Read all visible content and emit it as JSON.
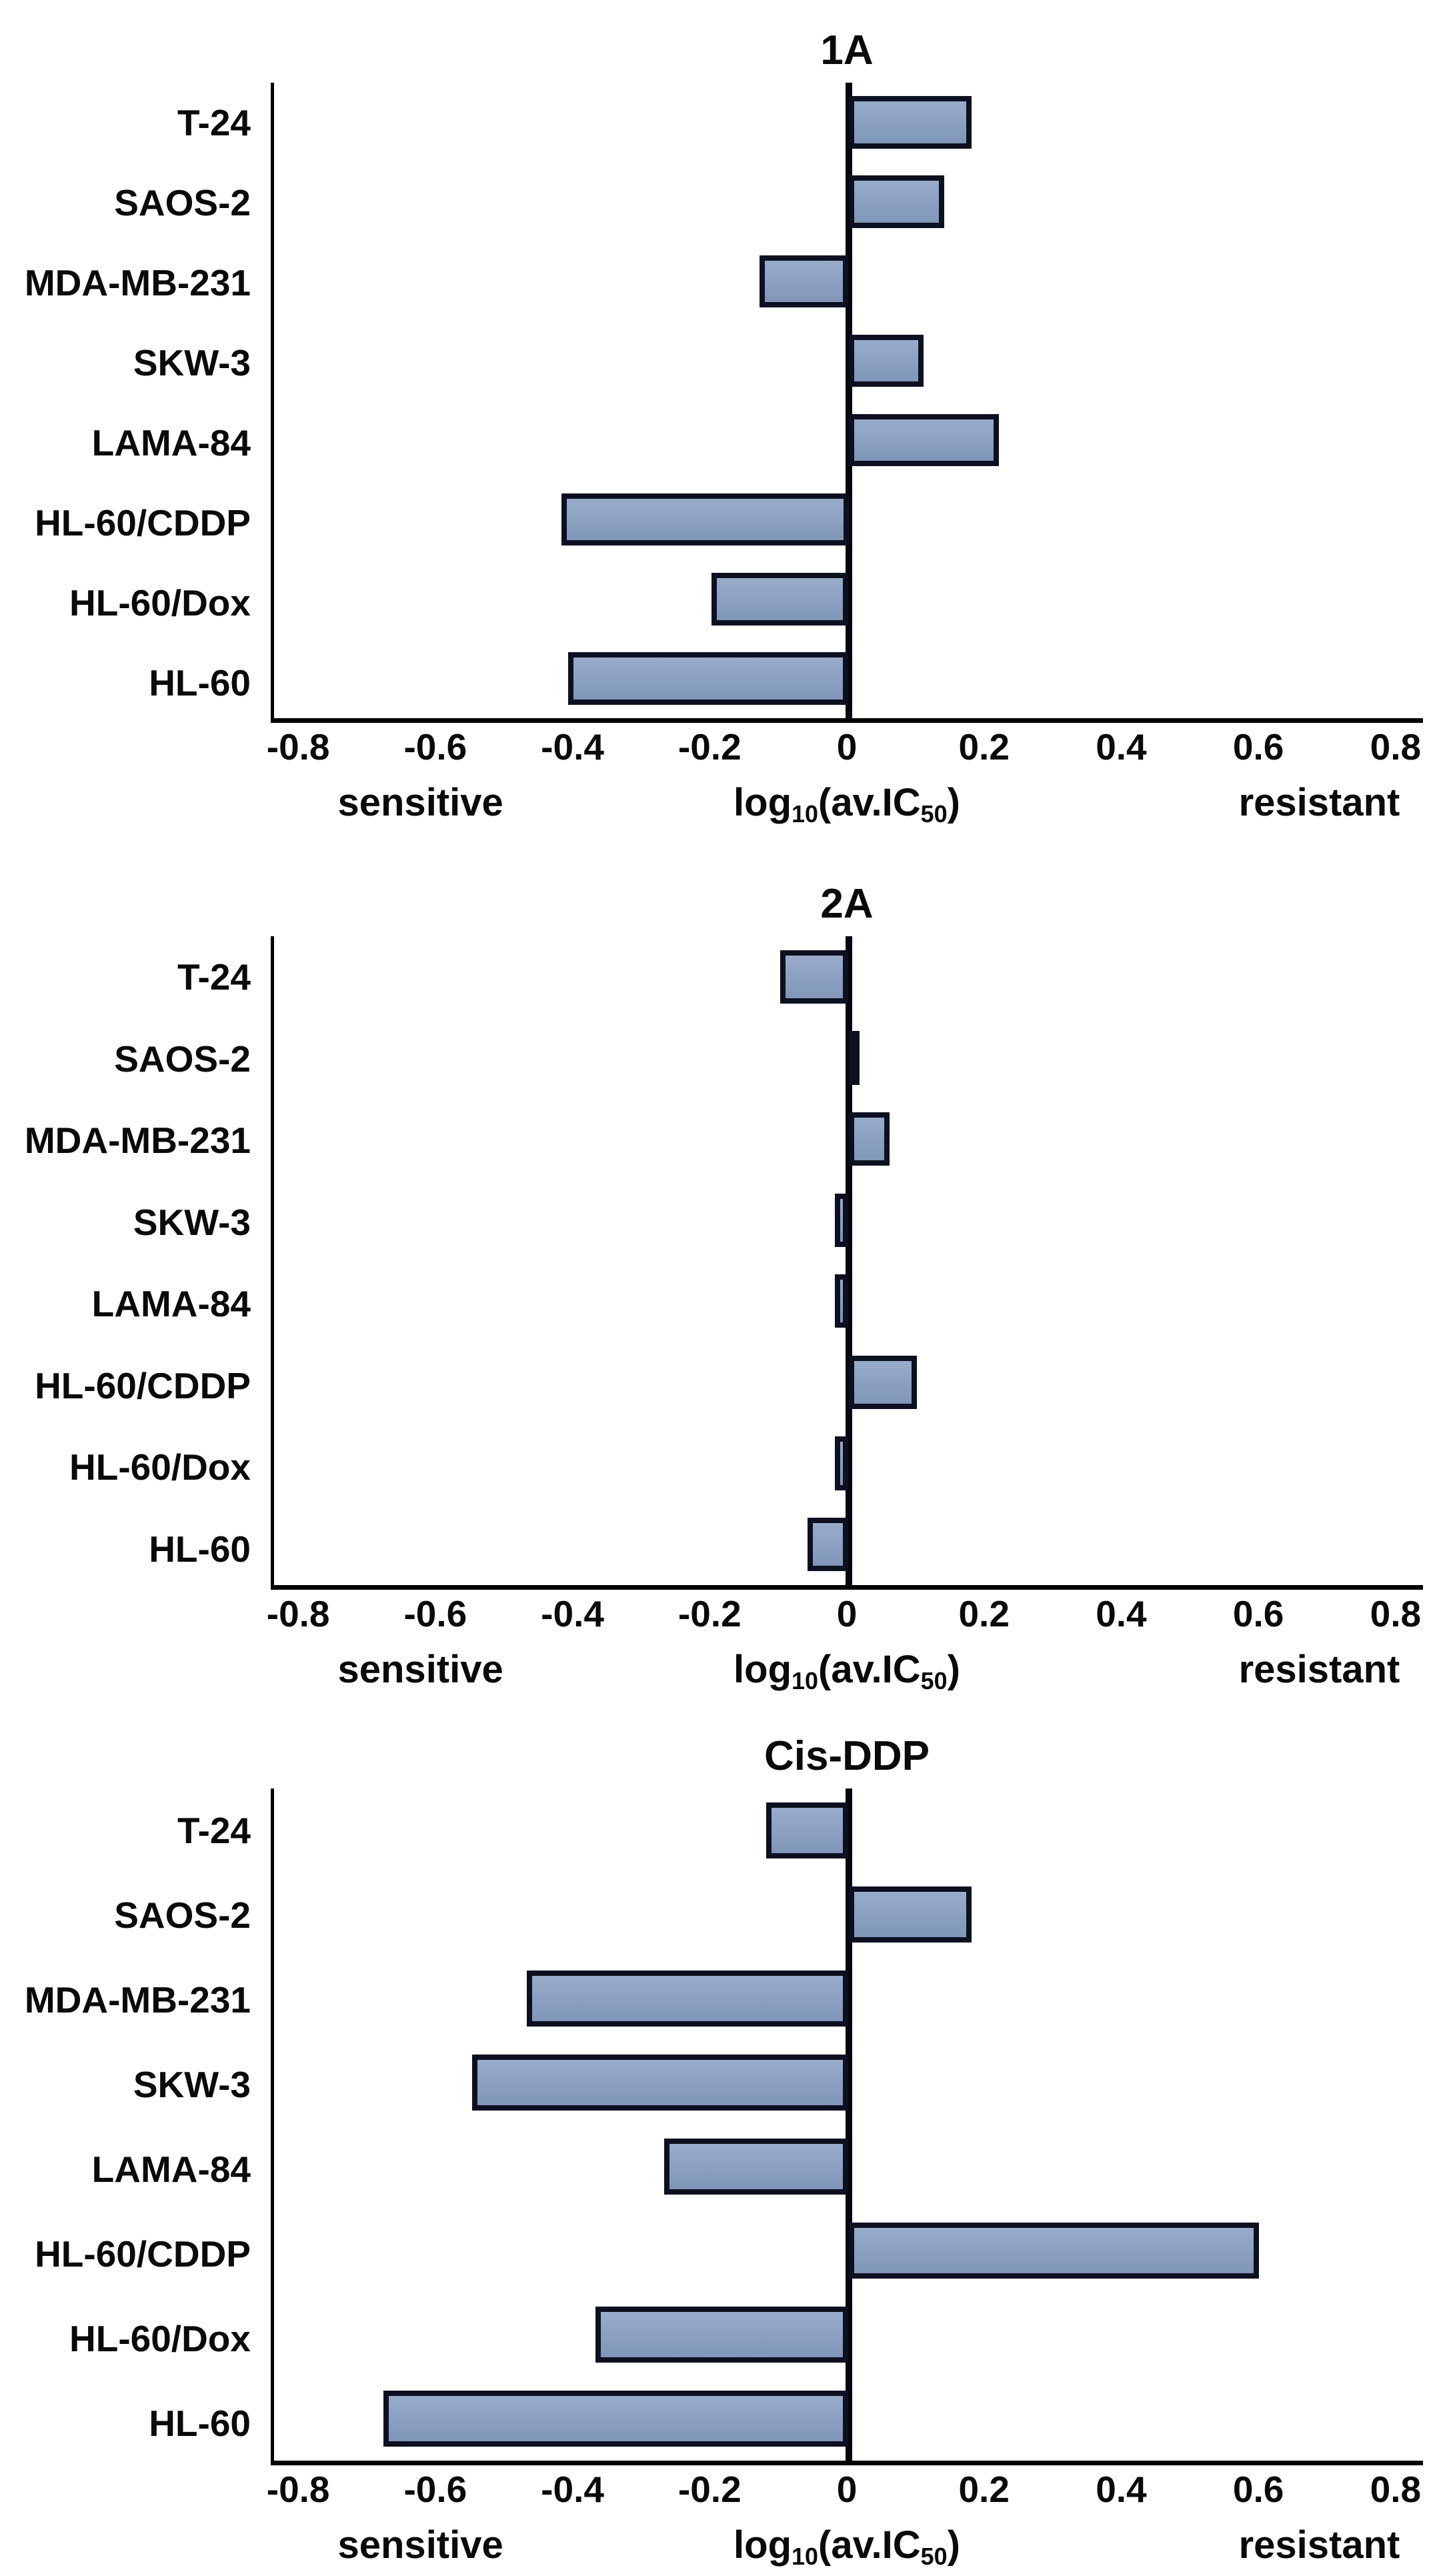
{
  "figure": {
    "background": "#ffffff",
    "text_color": "#0a0a0a",
    "bar_fill_top": "#98acca",
    "bar_fill_bottom": "#8096b8",
    "bar_border": "#0d1020",
    "axis_color": "#000000",
    "zero_line_color": "#05070f"
  },
  "chart_data": [
    {
      "id": "1a",
      "type": "bar",
      "orientation": "horizontal",
      "title": "1A",
      "categories": [
        "T-24",
        "SAOS-2",
        "MDA-MB-231",
        "SKW-3",
        "LAMA-84",
        "HL-60/CDDP",
        "HL-60/Dox",
        "HL-60"
      ],
      "values": [
        0.18,
        0.14,
        -0.13,
        0.11,
        0.22,
        -0.42,
        -0.2,
        -0.41
      ],
      "xlim": [
        -0.84,
        0.84
      ],
      "xticks": [
        -0.8,
        -0.6,
        -0.4,
        -0.2,
        0,
        0.2,
        0.4,
        0.6,
        0.8
      ],
      "xtick_labels": [
        "-0.8",
        "-0.6",
        "-0.4",
        "-0.2",
        "0",
        "0.2",
        "0.4",
        "0.6",
        "0.8"
      ],
      "xlabel": "log10(av.IC50)",
      "xlabel_parts": [
        {
          "text": "log"
        },
        {
          "text": "10",
          "sub": true
        },
        {
          "text": "(av.IC"
        },
        {
          "text": "50",
          "sub": true
        },
        {
          "text": ")"
        }
      ],
      "left_caption": "sensitive",
      "right_caption": "resistant",
      "grid": false,
      "legend": null
    },
    {
      "id": "2a",
      "type": "bar",
      "orientation": "horizontal",
      "title": "2A",
      "categories": [
        "T-24",
        "SAOS-2",
        "MDA-MB-231",
        "SKW-3",
        "LAMA-84",
        "HL-60/CDDP",
        "HL-60/Dox",
        "HL-60"
      ],
      "values": [
        -0.1,
        0.01,
        0.06,
        -0.02,
        -0.02,
        0.1,
        -0.02,
        -0.06
      ],
      "xlim": [
        -0.84,
        0.84
      ],
      "xticks": [
        -0.8,
        -0.6,
        -0.4,
        -0.2,
        0,
        0.2,
        0.4,
        0.6,
        0.8
      ],
      "xtick_labels": [
        "-0.8",
        "-0.6",
        "-0.4",
        "-0.2",
        "0",
        "0.2",
        "0.4",
        "0.6",
        "0.8"
      ],
      "xlabel": "log10(av.IC50)",
      "xlabel_parts": [
        {
          "text": "log"
        },
        {
          "text": "10",
          "sub": true
        },
        {
          "text": "(av.IC"
        },
        {
          "text": "50",
          "sub": true
        },
        {
          "text": ")"
        }
      ],
      "left_caption": "sensitive",
      "right_caption": "resistant",
      "grid": false,
      "legend": null
    },
    {
      "id": "cis-ddp",
      "type": "bar",
      "orientation": "horizontal",
      "title": "Cis-DDP",
      "categories": [
        "T-24",
        "SAOS-2",
        "MDA-MB-231",
        "SKW-3",
        "LAMA-84",
        "HL-60/CDDP",
        "HL-60/Dox",
        "HL-60"
      ],
      "values": [
        -0.12,
        0.18,
        -0.47,
        -0.55,
        -0.27,
        0.6,
        -0.37,
        -0.68
      ],
      "xlim": [
        -0.84,
        0.84
      ],
      "xticks": [
        -0.8,
        -0.6,
        -0.4,
        -0.2,
        0,
        0.2,
        0.4,
        0.6,
        0.8
      ],
      "xtick_labels": [
        "-0.8",
        "-0.6",
        "-0.4",
        "-0.2",
        "0",
        "0.2",
        "0.4",
        "0.6",
        "0.8"
      ],
      "xlabel": "log10(av.IC50)",
      "xlabel_parts": [
        {
          "text": "log"
        },
        {
          "text": "10",
          "sub": true
        },
        {
          "text": "(av.IC"
        },
        {
          "text": "50",
          "sub": true
        },
        {
          "text": ")"
        }
      ],
      "left_caption": "sensitive",
      "right_caption": "resistant",
      "grid": false,
      "legend": null
    }
  ]
}
